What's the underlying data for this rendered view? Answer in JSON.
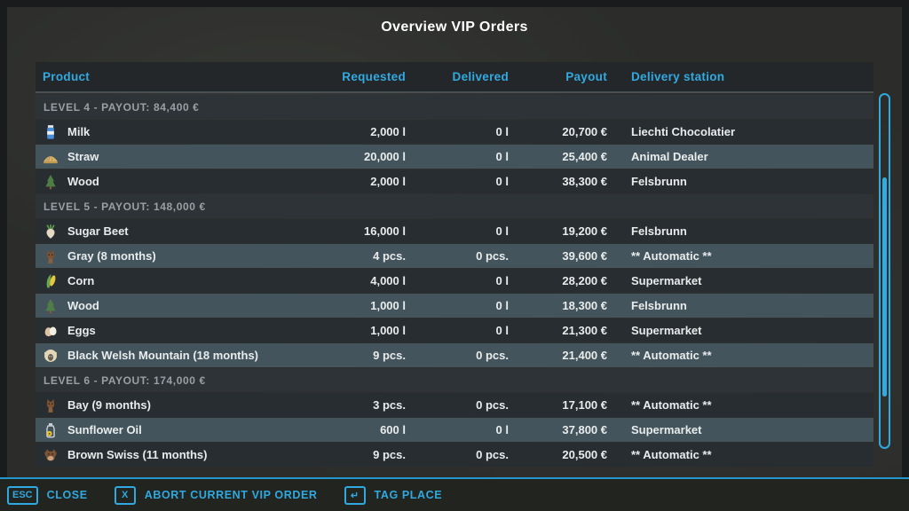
{
  "title": "Overview VIP Orders",
  "colors": {
    "accent": "#2fa9e0",
    "row_dark": "#272d31",
    "row_light": "#43545c",
    "panel": "#2c2d2b"
  },
  "table": {
    "columns": [
      "Product",
      "Requested",
      "Delivered",
      "Payout",
      "Delivery station"
    ],
    "sections": [
      {
        "label": "LEVEL 4 - PAYOUT: 84,400 €",
        "rows": [
          {
            "icon": "milk-icon",
            "product": "Milk",
            "requested": "2,000 l",
            "delivered": "0 l",
            "payout": "20,700 €",
            "station": "Liechti Chocolatier"
          },
          {
            "icon": "straw-icon",
            "product": "Straw",
            "requested": "20,000 l",
            "delivered": "0 l",
            "payout": "25,400 €",
            "station": "Animal Dealer"
          },
          {
            "icon": "tree-icon",
            "product": "Wood",
            "requested": "2,000 l",
            "delivered": "0 l",
            "payout": "38,300 €",
            "station": "Felsbrunn"
          }
        ]
      },
      {
        "label": "LEVEL 5 - PAYOUT: 148,000 €",
        "rows": [
          {
            "icon": "sugar-beet-icon",
            "product": "Sugar Beet",
            "requested": "16,000 l",
            "delivered": "0 l",
            "payout": "19,200 €",
            "station": "Felsbrunn"
          },
          {
            "icon": "horse-icon",
            "product": "Gray (8 months)",
            "requested": "4 pcs.",
            "delivered": "0 pcs.",
            "payout": "39,600 €",
            "station": "** Automatic **"
          },
          {
            "icon": "corn-icon",
            "product": "Corn",
            "requested": "4,000 l",
            "delivered": "0 l",
            "payout": "28,200 €",
            "station": "Supermarket"
          },
          {
            "icon": "tree-icon",
            "product": "Wood",
            "requested": "1,000 l",
            "delivered": "0 l",
            "payout": "18,300 €",
            "station": "Felsbrunn"
          },
          {
            "icon": "eggs-icon",
            "product": "Eggs",
            "requested": "1,000 l",
            "delivered": "0 l",
            "payout": "21,300 €",
            "station": "Supermarket"
          },
          {
            "icon": "sheep-icon",
            "product": "Black Welsh Mountain (18 months)",
            "requested": "9 pcs.",
            "delivered": "0 pcs.",
            "payout": "21,400 €",
            "station": "** Automatic **"
          }
        ]
      },
      {
        "label": "LEVEL 6 - PAYOUT: 174,000 €",
        "rows": [
          {
            "icon": "horse-icon",
            "product": "Bay (9 months)",
            "requested": "3 pcs.",
            "delivered": "0 pcs.",
            "payout": "17,100 €",
            "station": "** Automatic **"
          },
          {
            "icon": "oil-icon",
            "product": "Sunflower Oil",
            "requested": "600 l",
            "delivered": "0 l",
            "payout": "37,800 €",
            "station": "Supermarket"
          },
          {
            "icon": "cow-icon",
            "product": "Brown Swiss (11 months)",
            "requested": "9 pcs.",
            "delivered": "0 pcs.",
            "payout": "20,500 €",
            "station": "** Automatic **"
          }
        ]
      }
    ]
  },
  "footer": {
    "buttons": [
      {
        "name": "close-button",
        "key": "ESC",
        "label": "CLOSE"
      },
      {
        "name": "abort-vip-order-button",
        "key": "X",
        "label": "ABORT CURRENT VIP ORDER"
      },
      {
        "name": "tag-place-button",
        "key": "↵",
        "label": "TAG PLACE"
      }
    ]
  }
}
